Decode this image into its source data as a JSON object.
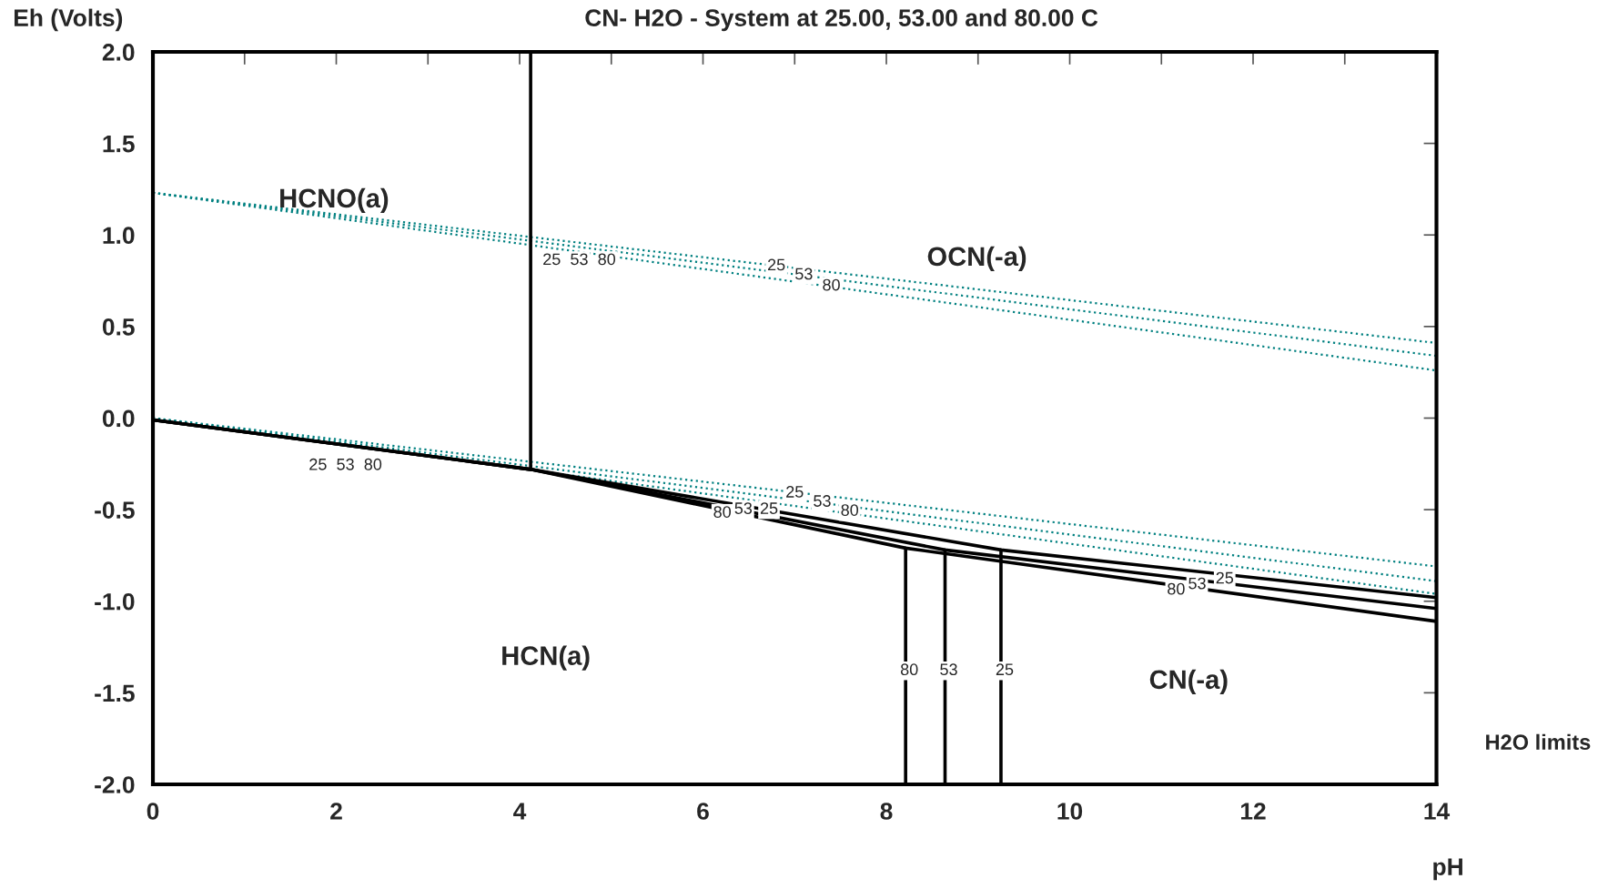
{
  "chart_data": {
    "type": "line",
    "title": "CN- H2O - System at 25.00, 53.00 and 80.00 C",
    "xlabel": "pH",
    "ylabel": "Eh (Volts)",
    "xlim": [
      0,
      14
    ],
    "ylim": [
      -2.0,
      2.0
    ],
    "xticks": [
      0,
      {
        "value": 1,
        "label": null
      },
      2,
      {
        "value": 3,
        "label": null
      },
      4,
      {
        "value": 5,
        "label": null
      },
      6,
      {
        "value": 7,
        "label": null
      },
      8,
      {
        "value": 9,
        "label": null
      },
      10,
      {
        "value": 11,
        "label": null
      },
      12,
      {
        "value": 13,
        "label": null
      },
      14
    ],
    "yticks": [
      {
        "value": -2.0,
        "label": "-2.0"
      },
      {
        "value": -1.5,
        "label": "-1.5"
      },
      {
        "value": -1.0,
        "label": "-1.0"
      },
      {
        "value": -0.5,
        "label": "-0.5"
      },
      {
        "value": 0.0,
        "label": "0.0"
      },
      {
        "value": 0.5,
        "label": "0.5"
      },
      {
        "value": 1.0,
        "label": "1.0"
      },
      {
        "value": 1.5,
        "label": "1.5"
      },
      {
        "value": 2.0,
        "label": "2.0"
      }
    ],
    "grid": false,
    "legend": false,
    "marker": "none",
    "series": [
      {
        "color": "#008080",
        "line_style": "dotted",
        "x": [
          0,
          14
        ],
        "values": [
          1.23,
          0.41
        ]
      },
      {
        "color": "#008080",
        "line_style": "dotted",
        "x": [
          0,
          14
        ],
        "values": [
          1.23,
          0.34
        ]
      },
      {
        "color": "#008080",
        "line_style": "dotted",
        "x": [
          0,
          14
        ],
        "values": [
          1.23,
          0.26
        ]
      },
      {
        "color": "#008080",
        "line_style": "dotted",
        "x": [
          0,
          14
        ],
        "values": [
          0.0,
          -0.81
        ]
      },
      {
        "color": "#008080",
        "line_style": "dotted",
        "x": [
          0,
          14
        ],
        "values": [
          0.0,
          -0.89
        ]
      },
      {
        "color": "#008080",
        "line_style": "dotted",
        "x": [
          0,
          14
        ],
        "values": [
          0.0,
          -0.96
        ]
      },
      {
        "color": "#000000",
        "line_style": "solid",
        "x": [
          4.12,
          4.12
        ],
        "values": [
          2.0,
          -0.28
        ]
      },
      {
        "color": "#000000",
        "line_style": "solid",
        "x": [
          0,
          4.12,
          9.25,
          14
        ],
        "values": [
          -0.01,
          -0.28,
          -0.72,
          -0.98
        ]
      },
      {
        "color": "#000000",
        "line_style": "solid",
        "x": [
          0,
          4.12,
          8.64,
          14
        ],
        "values": [
          -0.01,
          -0.28,
          -0.72,
          -1.04
        ]
      },
      {
        "color": "#000000",
        "line_style": "solid",
        "x": [
          0,
          4.12,
          8.21,
          14
        ],
        "values": [
          -0.01,
          -0.28,
          -0.71,
          -1.11
        ]
      },
      {
        "color": "#000000",
        "line_style": "solid",
        "x": [
          9.25,
          9.25
        ],
        "values": [
          -0.72,
          -2.0
        ]
      },
      {
        "color": "#000000",
        "line_style": "solid",
        "x": [
          8.64,
          8.64
        ],
        "values": [
          -0.72,
          -2.0
        ]
      },
      {
        "color": "#000000",
        "line_style": "solid",
        "x": [
          8.21,
          8.21
        ],
        "values": [
          -0.71,
          -2.0
        ]
      }
    ],
    "annotations": [
      "HCNO(a)",
      "OCN(-a)",
      "HCN(a)",
      "CN(-a)",
      "H2O limits",
      {
        "text": "25",
        "x": 6.8,
        "y": 0.83
      },
      {
        "text": "53",
        "x": 7.1,
        "y": 0.78
      },
      {
        "text": "80",
        "x": 7.4,
        "y": 0.72
      },
      {
        "text": "25",
        "x": 7.0,
        "y": -0.41
      },
      {
        "text": "53",
        "x": 7.3,
        "y": -0.46
      },
      {
        "text": "80",
        "x": 7.6,
        "y": -0.51
      },
      {
        "text": "80",
        "x": 6.21,
        "y": -0.52
      },
      {
        "text": "53",
        "x": 6.44,
        "y": -0.5
      },
      {
        "text": "25",
        "x": 6.72,
        "y": -0.5
      },
      {
        "text": "80",
        "x": 8.25,
        "y": -1.38
      },
      {
        "text": "53",
        "x": 8.68,
        "y": -1.38
      },
      {
        "text": "25",
        "x": 9.29,
        "y": -1.38
      },
      {
        "text": "80",
        "x": 11.16,
        "y": -0.94
      },
      {
        "text": "53",
        "x": 11.39,
        "y": -0.91
      },
      {
        "text": "25",
        "x": 11.69,
        "y": -0.88
      },
      {
        "text": "25",
        "x": 4.35,
        "y": 0.86
      },
      {
        "text": "53",
        "x": 4.65,
        "y": 0.86
      },
      {
        "text": "80",
        "x": 4.95,
        "y": 0.86
      },
      {
        "text": "25",
        "x": 1.8,
        "y": -0.26
      },
      {
        "text": "53",
        "x": 2.1,
        "y": -0.26
      },
      {
        "text": "80",
        "x": 2.4,
        "y": -0.26
      }
    ]
  }
}
